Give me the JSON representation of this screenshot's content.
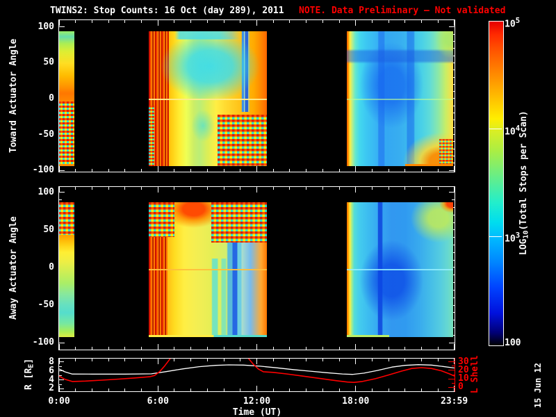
{
  "title": {
    "main": "TWINS2: Stop Counts: 16 Oct (day 289), 2011",
    "note": "NOTE. Data Preliminary — Not validated"
  },
  "stamp": "15 Jun 12",
  "colors": {
    "background": "#000000",
    "axis": "#ffffff",
    "note_red": "#ff0000",
    "l_shell_red": "#ff0000",
    "r_line_white": "#ffffff",
    "colorbar_top": "#e60000",
    "colorbar_bottom": "#000000"
  },
  "xaxis": {
    "label": "Time (UT)",
    "range_h": [
      0,
      24
    ],
    "minor_step_h": 1,
    "major_ticks": [
      {
        "h": 0,
        "label": "0:00"
      },
      {
        "h": 6,
        "label": "6:00"
      },
      {
        "h": 12,
        "label": "12:00"
      },
      {
        "h": 18,
        "label": "18:00"
      },
      {
        "h": 23.983,
        "label": "23:59"
      }
    ]
  },
  "panels": {
    "toward": {
      "ylabel": "Toward Actuator Angle",
      "ytick_major": [
        100,
        50,
        0,
        -50,
        -100
      ],
      "ytick_minor_step": 10
    },
    "away": {
      "ylabel": "Away Actuator Angle",
      "ytick_major": [
        100,
        50,
        0,
        -50,
        -100
      ],
      "ytick_minor_step": 10
    },
    "orbit": {
      "left_label_pre": "R [R",
      "left_label_sub": "E",
      "left_label_post": "]",
      "right_label": "L Shell",
      "r_ticks_major": [
        2,
        4,
        6,
        8
      ],
      "r_ticks_minor": [
        3,
        5,
        7
      ],
      "l_ticks_major": [
        0,
        10,
        20,
        30
      ],
      "l_ticks_minor": [
        5,
        15,
        25
      ]
    }
  },
  "colorbar": {
    "label_pre": "LOG",
    "label_sub": "10",
    "label_post": "(Total Stops per Scan)",
    "ticks": [
      {
        "frac": 1,
        "base": "10",
        "exp": "5"
      },
      {
        "frac": 0.6667,
        "base": "10",
        "exp": "4"
      },
      {
        "frac": 0.3333,
        "base": "10",
        "exp": "3"
      },
      {
        "frac": 0,
        "plain": "100"
      }
    ]
  },
  "chart_data": {
    "type": "heatmap",
    "title": "TWINS2: Stop Counts: 16 Oct (day 289), 2011",
    "x_axis": {
      "label": "Time (UT)",
      "range_hours": [
        0,
        24
      ]
    },
    "color_scale": {
      "label": "LOG10(Total Stops per Scan)",
      "min": 100,
      "max": 100000,
      "scale": "log"
    },
    "spectrogram_panels": [
      {
        "name": "Toward Actuator Angle",
        "y_range": [
          -100,
          100
        ]
      },
      {
        "name": "Away Actuator Angle",
        "y_range": [
          -100,
          100
        ]
      }
    ],
    "data_block_time_ranges_h": [
      [
        0,
        0.93
      ],
      [
        5.47,
        12.63
      ],
      [
        17.52,
        23.92
      ]
    ],
    "series": [
      {
        "name": "R [RE]",
        "color": "#ffffff",
        "axis_range": [
          1.45,
          8.75
        ],
        "points": [
          [
            0,
            6.45
          ],
          [
            0.35,
            5.8
          ],
          [
            0.8,
            5.3
          ],
          [
            2,
            5.28
          ],
          [
            4,
            5.28
          ],
          [
            5.6,
            5.35
          ],
          [
            6.5,
            5.85
          ],
          [
            7.5,
            6.45
          ],
          [
            8.5,
            6.95
          ],
          [
            9.5,
            7.25
          ],
          [
            10.3,
            7.35
          ],
          [
            11.2,
            7.3
          ],
          [
            12.2,
            7.05
          ],
          [
            13.2,
            6.7
          ],
          [
            14.2,
            6.3
          ],
          [
            15.2,
            5.95
          ],
          [
            16.2,
            5.62
          ],
          [
            17.2,
            5.32
          ],
          [
            17.8,
            5.22
          ],
          [
            18.5,
            5.5
          ],
          [
            19.3,
            6.1
          ],
          [
            20.2,
            6.85
          ],
          [
            21,
            7.25
          ],
          [
            21.8,
            7.4
          ],
          [
            22.6,
            7.3
          ],
          [
            23.3,
            7.0
          ],
          [
            24,
            6.65
          ]
        ]
      },
      {
        "name": "L Shell",
        "color": "#ff0000",
        "axis_range": [
          -4.7,
          33.9
        ],
        "segments": [
          [
            [
              0,
              13.2
            ],
            [
              0.35,
              9.5
            ],
            [
              0.8,
              6.9
            ],
            [
              1.6,
              7.4
            ],
            [
              2.6,
              8.4
            ],
            [
              3.6,
              9.7
            ],
            [
              4.6,
              11.1
            ],
            [
              5.5,
              12.5
            ],
            [
              5.8,
              14
            ],
            [
              6.1,
              18.5
            ],
            [
              6.4,
              25
            ],
            [
              6.75,
              34
            ]
          ],
          [
            [
              11.5,
              34
            ],
            [
              11.8,
              27
            ],
            [
              12.1,
              21.5
            ],
            [
              12.4,
              18.4
            ],
            [
              13,
              17.6
            ],
            [
              13.8,
              15.8
            ],
            [
              14.8,
              13.2
            ],
            [
              15.8,
              10.6
            ],
            [
              16.8,
              7.9
            ],
            [
              17.5,
              6.2
            ],
            [
              17.9,
              5.8
            ],
            [
              18.4,
              6.9
            ],
            [
              19.2,
              10.2
            ],
            [
              20,
              14.6
            ],
            [
              20.8,
              19.2
            ],
            [
              21.4,
              22.2
            ],
            [
              22,
              23.2
            ],
            [
              22.6,
              22.2
            ],
            [
              23.2,
              19.5
            ],
            [
              23.7,
              15.8
            ],
            [
              24,
              13.2
            ]
          ]
        ]
      }
    ]
  }
}
